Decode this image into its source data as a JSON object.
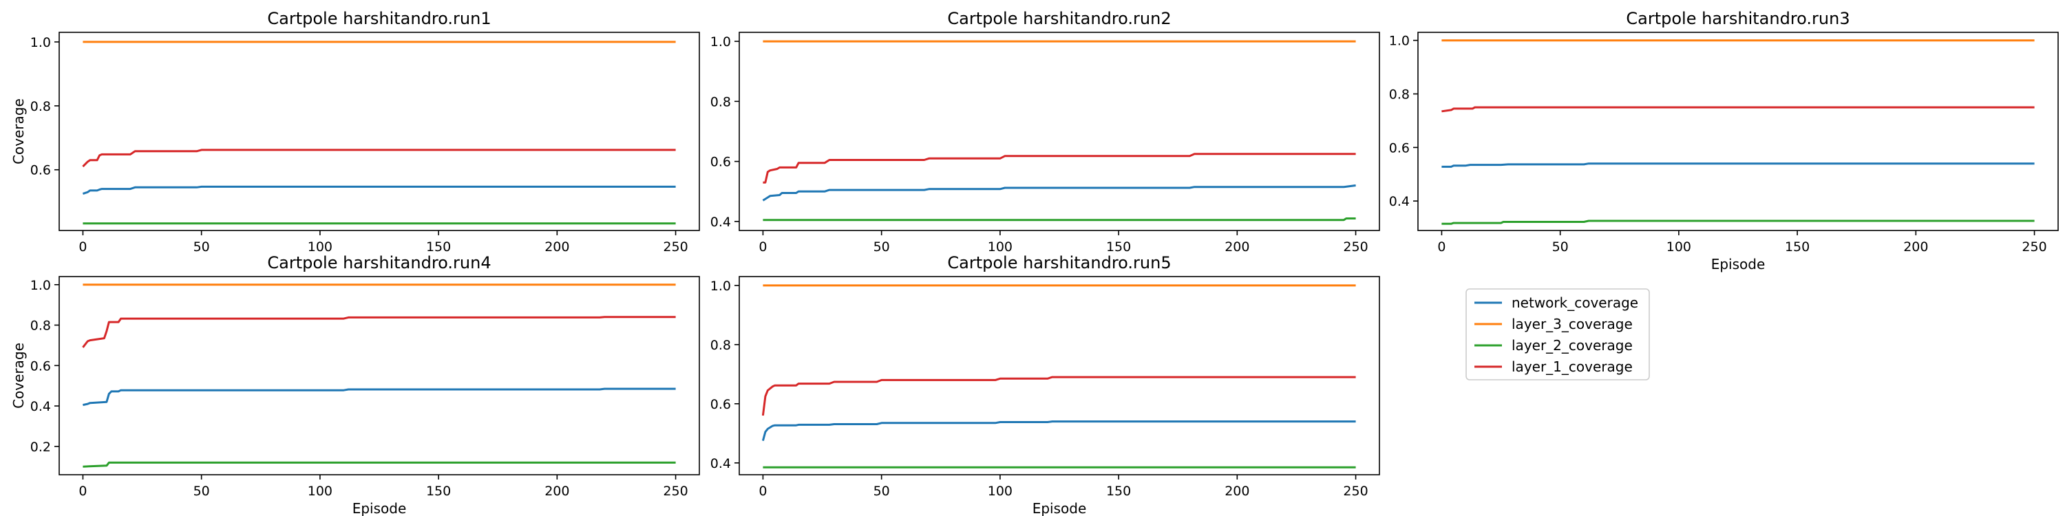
{
  "figure": {
    "legend": {
      "position": "right-of-subplots",
      "entries": [
        "network_coverage",
        "layer_3_coverage",
        "layer_2_coverage",
        "layer_1_coverage"
      ]
    },
    "series_colors": {
      "network_coverage": "#1f77b4",
      "layer_3_coverage": "#ff7f0e",
      "layer_2_coverage": "#2ca02c",
      "layer_1_coverage": "#d62728"
    }
  },
  "chart_data": [
    {
      "type": "line",
      "title": "Cartpole harshitandro.run1",
      "xlabel": "",
      "ylabel": "Coverage",
      "xlim": [
        -10,
        260
      ],
      "ylim": [
        0.41,
        1.03
      ],
      "xticks": [
        0,
        50,
        100,
        150,
        200,
        250
      ],
      "xtick_labels": [
        "0",
        "50",
        "100",
        "150",
        "200",
        "250"
      ],
      "yticks": [
        0.6,
        0.8,
        1.0
      ],
      "ytick_labels": [
        "0.6",
        "0.8",
        "1.0"
      ],
      "series": [
        {
          "name": "network_coverage",
          "x": [
            0,
            2,
            3,
            6,
            7,
            8,
            20,
            22,
            48,
            50,
            250
          ],
          "y": [
            0.525,
            0.53,
            0.535,
            0.535,
            0.538,
            0.54,
            0.54,
            0.545,
            0.545,
            0.547,
            0.547
          ]
        },
        {
          "name": "layer_3_coverage",
          "x": [
            0,
            250
          ],
          "y": [
            1.0,
            1.0
          ]
        },
        {
          "name": "layer_2_coverage",
          "x": [
            0,
            250
          ],
          "y": [
            0.432,
            0.432
          ]
        },
        {
          "name": "layer_1_coverage",
          "x": [
            0,
            2,
            3,
            6,
            7,
            8,
            20,
            22,
            48,
            50,
            250
          ],
          "y": [
            0.61,
            0.625,
            0.63,
            0.63,
            0.645,
            0.648,
            0.648,
            0.658,
            0.658,
            0.662,
            0.662
          ]
        }
      ]
    },
    {
      "type": "line",
      "title": "Cartpole harshitandro.run2",
      "xlabel": "",
      "ylabel": "",
      "xlim": [
        -10,
        260
      ],
      "ylim": [
        0.37,
        1.03
      ],
      "xticks": [
        0,
        50,
        100,
        150,
        200,
        250
      ],
      "xtick_labels": [
        "0",
        "50",
        "100",
        "150",
        "200",
        "250"
      ],
      "yticks": [
        0.4,
        0.6,
        0.8,
        1.0
      ],
      "ytick_labels": [
        "0.4",
        "0.6",
        "0.8",
        "1.0"
      ],
      "series": [
        {
          "name": "network_coverage",
          "x": [
            0,
            2,
            3,
            7,
            8,
            14,
            15,
            26,
            28,
            68,
            70,
            100,
            102,
            180,
            182,
            245,
            250
          ],
          "y": [
            0.47,
            0.48,
            0.485,
            0.488,
            0.495,
            0.495,
            0.5,
            0.5,
            0.505,
            0.505,
            0.508,
            0.508,
            0.512,
            0.512,
            0.515,
            0.515,
            0.52
          ]
        },
        {
          "name": "layer_3_coverage",
          "x": [
            0,
            250
          ],
          "y": [
            1.0,
            1.0
          ]
        },
        {
          "name": "layer_2_coverage",
          "x": [
            0,
            245,
            246,
            250
          ],
          "y": [
            0.405,
            0.405,
            0.41,
            0.41
          ]
        },
        {
          "name": "layer_1_coverage",
          "x": [
            0,
            1,
            2,
            3,
            6,
            7,
            14,
            15,
            26,
            28,
            68,
            70,
            100,
            102,
            180,
            182,
            250
          ],
          "y": [
            0.53,
            0.53,
            0.565,
            0.57,
            0.575,
            0.58,
            0.58,
            0.595,
            0.595,
            0.605,
            0.605,
            0.61,
            0.61,
            0.618,
            0.618,
            0.625,
            0.625
          ]
        }
      ]
    },
    {
      "type": "line",
      "title": "Cartpole harshitandro.run3",
      "xlabel": "Episode",
      "ylabel": "",
      "xlim": [
        -10,
        260
      ],
      "ylim": [
        0.29,
        1.03
      ],
      "xticks": [
        0,
        50,
        100,
        150,
        200,
        250
      ],
      "xtick_labels": [
        "0",
        "50",
        "100",
        "150",
        "200",
        "250"
      ],
      "yticks": [
        0.4,
        0.6,
        0.8,
        1.0
      ],
      "ytick_labels": [
        "0.4",
        "0.6",
        "0.8",
        "1.0"
      ],
      "series": [
        {
          "name": "network_coverage",
          "x": [
            0,
            4,
            5,
            10,
            12,
            25,
            28,
            60,
            62,
            250
          ],
          "y": [
            0.528,
            0.528,
            0.532,
            0.532,
            0.535,
            0.535,
            0.537,
            0.537,
            0.54,
            0.54
          ]
        },
        {
          "name": "layer_3_coverage",
          "x": [
            0,
            250
          ],
          "y": [
            1.0,
            1.0
          ]
        },
        {
          "name": "layer_2_coverage",
          "x": [
            0,
            4,
            5,
            25,
            26,
            60,
            62,
            250
          ],
          "y": [
            0.315,
            0.315,
            0.318,
            0.318,
            0.322,
            0.322,
            0.326,
            0.326
          ]
        },
        {
          "name": "layer_1_coverage",
          "x": [
            0,
            4,
            5,
            13,
            14,
            250
          ],
          "y": [
            0.735,
            0.74,
            0.745,
            0.745,
            0.75,
            0.75
          ]
        }
      ]
    },
    {
      "type": "line",
      "title": "Cartpole harshitandro.run4",
      "xlabel": "Episode",
      "ylabel": "Coverage",
      "xlim": [
        -10,
        260
      ],
      "ylim": [
        0.06,
        1.04
      ],
      "xticks": [
        0,
        50,
        100,
        150,
        200,
        250
      ],
      "xtick_labels": [
        "0",
        "50",
        "100",
        "150",
        "200",
        "250"
      ],
      "yticks": [
        0.2,
        0.4,
        0.6,
        0.8,
        1.0
      ],
      "ytick_labels": [
        "0.2",
        "0.4",
        "0.6",
        "0.8",
        "1.0"
      ],
      "series": [
        {
          "name": "network_coverage",
          "x": [
            0,
            2,
            3,
            10,
            11,
            12,
            15,
            16,
            110,
            112,
            218,
            220,
            250
          ],
          "y": [
            0.405,
            0.41,
            0.415,
            0.42,
            0.46,
            0.472,
            0.472,
            0.478,
            0.478,
            0.482,
            0.482,
            0.485,
            0.485
          ]
        },
        {
          "name": "layer_3_coverage",
          "x": [
            0,
            250
          ],
          "y": [
            1.0,
            1.0
          ]
        },
        {
          "name": "layer_2_coverage",
          "x": [
            0,
            10,
            11,
            250
          ],
          "y": [
            0.1,
            0.105,
            0.12,
            0.12
          ]
        },
        {
          "name": "layer_1_coverage",
          "x": [
            0,
            2,
            3,
            9,
            10,
            11,
            12,
            15,
            16,
            110,
            112,
            218,
            220,
            250
          ],
          "y": [
            0.69,
            0.72,
            0.725,
            0.735,
            0.77,
            0.815,
            0.815,
            0.815,
            0.832,
            0.832,
            0.838,
            0.838,
            0.84,
            0.84
          ]
        }
      ]
    },
    {
      "type": "line",
      "title": "Cartpole harshitandro.run5",
      "xlabel": "Episode",
      "ylabel": "",
      "xlim": [
        -10,
        260
      ],
      "ylim": [
        0.36,
        1.03
      ],
      "xticks": [
        0,
        50,
        100,
        150,
        200,
        250
      ],
      "xtick_labels": [
        "0",
        "50",
        "100",
        "150",
        "200",
        "250"
      ],
      "yticks": [
        0.4,
        0.6,
        0.8,
        1.0
      ],
      "ytick_labels": [
        "0.4",
        "0.6",
        "0.8",
        "1.0"
      ],
      "series": [
        {
          "name": "network_coverage",
          "x": [
            0,
            1,
            2,
            4,
            5,
            14,
            15,
            28,
            30,
            48,
            50,
            98,
            100,
            120,
            122,
            250
          ],
          "y": [
            0.475,
            0.505,
            0.515,
            0.525,
            0.527,
            0.527,
            0.529,
            0.529,
            0.531,
            0.531,
            0.535,
            0.535,
            0.538,
            0.538,
            0.54,
            0.54
          ]
        },
        {
          "name": "layer_3_coverage",
          "x": [
            0,
            250
          ],
          "y": [
            1.0,
            1.0
          ]
        },
        {
          "name": "layer_2_coverage",
          "x": [
            0,
            250
          ],
          "y": [
            0.385,
            0.385
          ]
        },
        {
          "name": "layer_1_coverage",
          "x": [
            0,
            1,
            2,
            4,
            5,
            14,
            15,
            28,
            30,
            48,
            50,
            98,
            100,
            120,
            122,
            250
          ],
          "y": [
            0.56,
            0.625,
            0.645,
            0.658,
            0.662,
            0.662,
            0.668,
            0.668,
            0.674,
            0.674,
            0.68,
            0.68,
            0.685,
            0.685,
            0.69,
            0.69
          ]
        }
      ]
    }
  ]
}
